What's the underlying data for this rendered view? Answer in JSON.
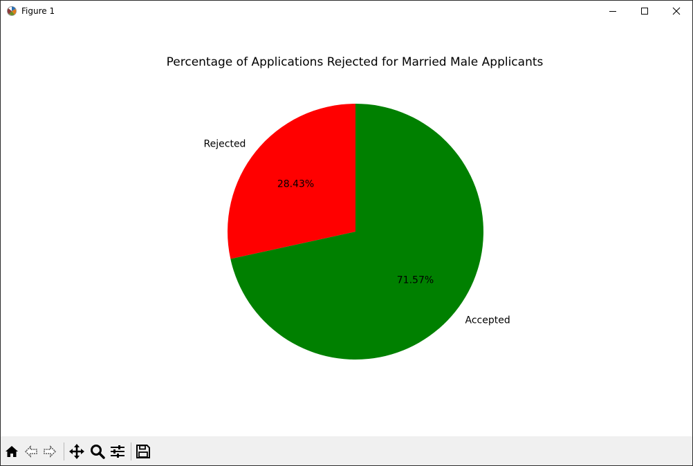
{
  "window": {
    "title": "Figure 1",
    "app_icon": "matplotlib-figure-icon"
  },
  "titlebar_buttons": {
    "minimize_icon": "minimize-icon",
    "maximize_icon": "maximize-icon",
    "close_icon": "close-icon"
  },
  "toolbar": {
    "buttons": [
      {
        "name": "home-button",
        "icon": "home-icon"
      },
      {
        "name": "back-button",
        "icon": "back-arrow-icon"
      },
      {
        "name": "forward-button",
        "icon": "forward-arrow-icon"
      },
      {
        "name": "pan-button",
        "icon": "move-icon"
      },
      {
        "name": "zoom-button",
        "icon": "zoom-icon"
      },
      {
        "name": "configure-subplots-button",
        "icon": "sliders-icon"
      },
      {
        "name": "save-button",
        "icon": "save-icon"
      }
    ]
  },
  "chart_data": {
    "type": "pie",
    "title": "Percentage of Applications Rejected for Married Male Applicants",
    "categories": [
      "Rejected",
      "Accepted"
    ],
    "values": [
      28.43,
      71.57
    ],
    "value_labels": [
      "28.43%",
      "71.57%"
    ],
    "colors": [
      "#ff0000",
      "#008000"
    ],
    "start_angle_deg": 90,
    "direction": "counterclockwise"
  }
}
